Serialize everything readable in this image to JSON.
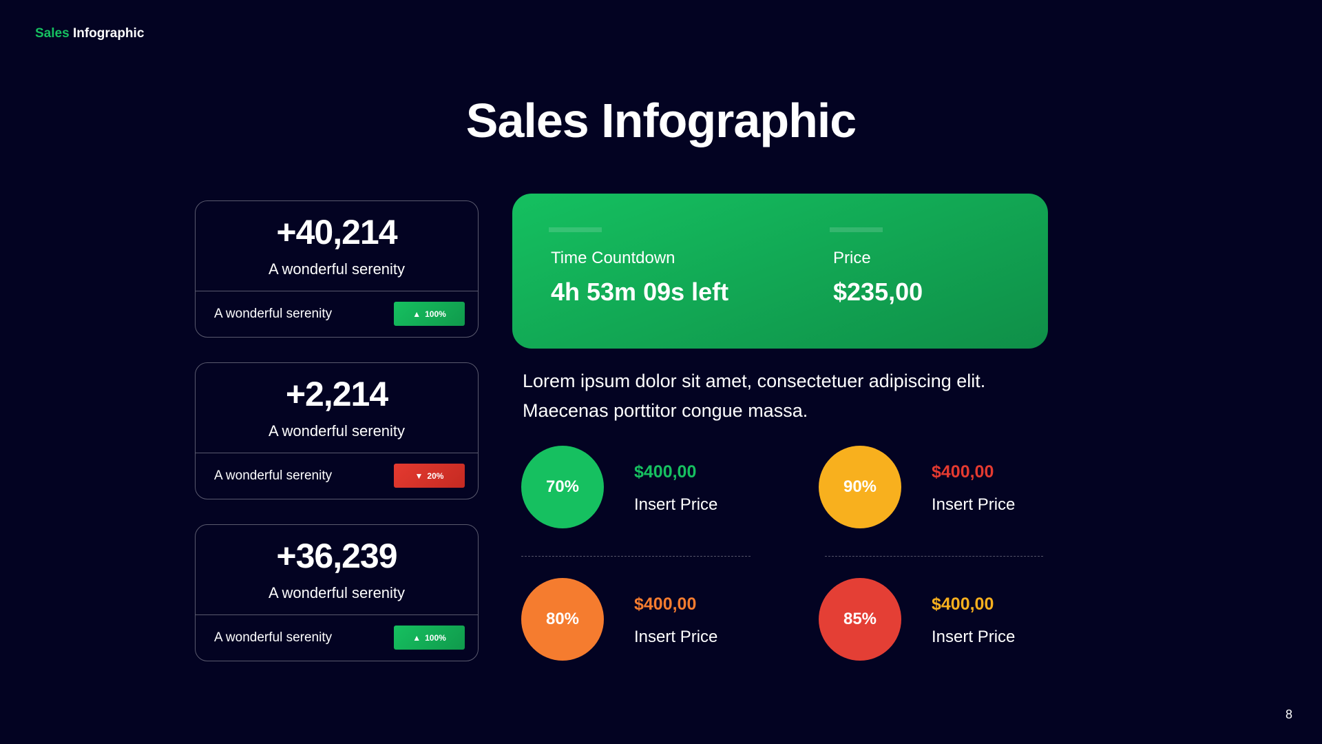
{
  "header": {
    "brand_part1": "Sales",
    "brand_part2": "Infographic"
  },
  "title": "Sales Infographic",
  "stat_cards": [
    {
      "value": "+40,214",
      "subtitle": "A wonderful serenity",
      "footer": "A wonderful serenity",
      "badge": "100%",
      "trend": "up",
      "trend_icon": "triangle-up-icon"
    },
    {
      "value": "+2,214",
      "subtitle": "A wonderful serenity",
      "footer": "A wonderful serenity",
      "badge": "20%",
      "trend": "down",
      "trend_icon": "triangle-down-icon"
    },
    {
      "value": "+36,239",
      "subtitle": "A wonderful serenity",
      "footer": "A wonderful serenity",
      "badge": "100%",
      "trend": "up",
      "trend_icon": "triangle-up-icon"
    }
  ],
  "promo": {
    "countdown_label": "Time Countdown",
    "countdown_value": "4h 53m 09s left",
    "price_label": "Price",
    "price_value": "$235,00"
  },
  "description": "Lorem ipsum dolor sit amet, consectetuer adipiscing elit. Maecenas porttitor congue massa.",
  "price_items": [
    {
      "percent": "70%",
      "price": "$400,00",
      "label": "Insert Price",
      "circle_color": "#16c060",
      "price_color": "#16c060"
    },
    {
      "percent": "90%",
      "price": "$400,00",
      "label": "Insert Price",
      "circle_color": "#f8b01e",
      "price_color": "#e43a30"
    },
    {
      "percent": "80%",
      "price": "$400,00",
      "label": "Insert Price",
      "circle_color": "#f57c2f",
      "price_color": "#f57c2f"
    },
    {
      "percent": "85%",
      "price": "$400,00",
      "label": "Insert Price",
      "circle_color": "#e43f35",
      "price_color": "#f8b01e"
    }
  ],
  "page_number": "8"
}
